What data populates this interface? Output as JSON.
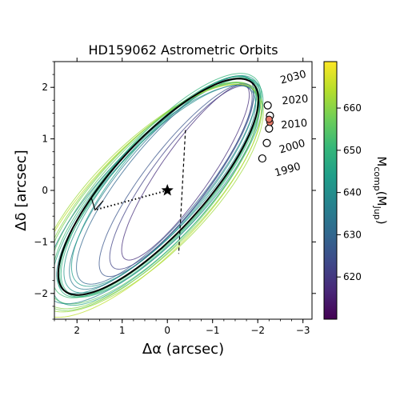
{
  "chart_data": {
    "type": "scatter",
    "title": "HD159062 Astrometric Orbits",
    "xlabel": "Δα (arcsec)",
    "ylabel": "Δδ [arcsec]",
    "xlim": [
      2.5,
      -3.2
    ],
    "ylim": [
      -2.5,
      2.5
    ],
    "xticks": [
      2,
      1,
      0,
      -1,
      -2,
      -3
    ],
    "xtick_labels": [
      "2",
      "1",
      "0",
      "−1",
      "−2",
      "−3"
    ],
    "yticks": [
      -2,
      -1,
      0,
      1,
      2
    ],
    "ytick_labels": [
      "−2",
      "−1",
      "0",
      "1",
      "2"
    ],
    "star": {
      "x": 0,
      "y": 0,
      "marker": "star"
    },
    "best_orbit": {
      "cx": 0.2,
      "cy": 0.07,
      "a": 2.9,
      "b": 0.95,
      "angle_deg": 43.1,
      "color": "#000000"
    },
    "sampled_orbits": [
      {
        "cx": 0.2,
        "cy": 0.07,
        "a": 2.9,
        "b": 0.95,
        "angle": 43,
        "mass": 645
      },
      {
        "cx": 0.15,
        "cy": 0.1,
        "a": 2.95,
        "b": 1.0,
        "angle": 44,
        "mass": 650
      },
      {
        "cx": 0.25,
        "cy": 0.02,
        "a": 2.85,
        "b": 0.9,
        "angle": 42,
        "mass": 640
      },
      {
        "cx": 0.3,
        "cy": -0.05,
        "a": 3.0,
        "b": 1.05,
        "angle": 42,
        "mass": 655
      },
      {
        "cx": 0.1,
        "cy": 0.15,
        "a": 2.8,
        "b": 0.85,
        "angle": 45,
        "mass": 635
      },
      {
        "cx": 0.35,
        "cy": -0.1,
        "a": 3.1,
        "b": 1.1,
        "angle": 41,
        "mass": 660
      },
      {
        "cx": 0.05,
        "cy": 0.2,
        "a": 2.7,
        "b": 0.8,
        "angle": 46,
        "mass": 630
      },
      {
        "cx": 0.4,
        "cy": -0.15,
        "a": 3.15,
        "b": 1.15,
        "angle": 40,
        "mass": 662
      },
      {
        "cx": 0.18,
        "cy": 0.05,
        "a": 2.95,
        "b": 0.92,
        "angle": 43,
        "mass": 648
      },
      {
        "cx": 0.28,
        "cy": 0.0,
        "a": 2.92,
        "b": 0.98,
        "angle": 42,
        "mass": 652
      },
      {
        "cx": 0.22,
        "cy": -0.02,
        "a": 3.05,
        "b": 1.02,
        "angle": 43,
        "mass": 646
      },
      {
        "cx": 0.12,
        "cy": 0.12,
        "a": 2.88,
        "b": 0.93,
        "angle": 44,
        "mass": 642
      },
      {
        "cx": -0.3,
        "cy": 0.25,
        "a": 2.3,
        "b": 0.6,
        "angle": 49,
        "mass": 622
      },
      {
        "cx": -0.4,
        "cy": 0.35,
        "a": 2.15,
        "b": 0.52,
        "angle": 51,
        "mass": 618
      },
      {
        "cx": -0.2,
        "cy": 0.2,
        "a": 2.45,
        "b": 0.65,
        "angle": 48,
        "mass": 626
      },
      {
        "cx": 0.45,
        "cy": -0.2,
        "a": 3.2,
        "b": 1.12,
        "angle": 41,
        "mass": 665
      },
      {
        "cx": 0.33,
        "cy": -0.08,
        "a": 3.02,
        "b": 1.0,
        "angle": 41,
        "mass": 638
      },
      {
        "cx": 0.08,
        "cy": 0.18,
        "a": 2.75,
        "b": 0.88,
        "angle": 45,
        "mass": 644
      },
      {
        "cx": 0.38,
        "cy": -0.12,
        "a": 3.08,
        "b": 1.08,
        "angle": 42,
        "mass": 658
      },
      {
        "cx": 0.16,
        "cy": 0.08,
        "a": 2.9,
        "b": 0.97,
        "angle": 44,
        "mass": 649
      }
    ],
    "epochs": [
      {
        "label": "1990",
        "x": -2.1,
        "y": 0.62,
        "label_dx": 0.15,
        "label_dy": -0.35,
        "rotation": 16
      },
      {
        "label": "2000",
        "x": -2.2,
        "y": 0.92,
        "label_dx": 0.15,
        "label_dy": -0.2,
        "rotation": 16
      },
      {
        "label": "2010",
        "x": -2.25,
        "y": 1.2,
        "label_dx": 0.12,
        "label_dy": 0.0,
        "rotation": 5
      },
      {
        "label": "2020",
        "x": -2.27,
        "y": 1.45,
        "label_dx": 0.12,
        "label_dy": 0.22,
        "rotation": 5
      },
      {
        "label": "2030",
        "x": -2.22,
        "y": 1.65,
        "label_dx": 0.15,
        "label_dy": 0.42,
        "rotation": 15
      }
    ],
    "colorbar": {
      "label_main": "M",
      "label_sub": "comp",
      "label_paren_open": "(M",
      "label_sub2": "Jup",
      "label_paren_close": ")",
      "range": [
        610,
        671
      ],
      "ticks": [
        620,
        630,
        640,
        650,
        660
      ],
      "tick_labels": [
        "620",
        "630",
        "640",
        "650",
        "660"
      ],
      "colors": [
        "#440154",
        "#482878",
        "#3e4989",
        "#31688e",
        "#26828e",
        "#1f9e89",
        "#35b779",
        "#6ece58",
        "#b5de2b",
        "#fde725"
      ]
    },
    "grid": false,
    "legend": "none"
  }
}
